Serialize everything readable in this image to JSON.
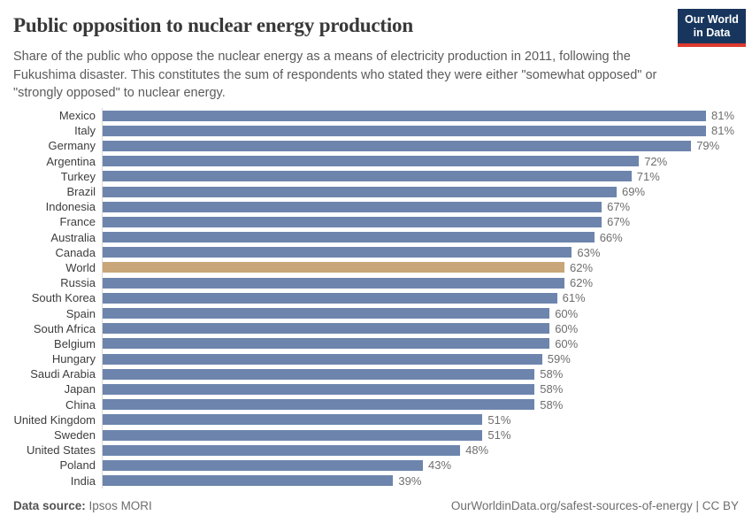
{
  "header": {
    "title": "Public opposition to nuclear energy production",
    "subtitle": "Share of the public who oppose the nuclear energy as a means of electricity production in 2011, following the Fukushima disaster. This constitutes the sum of respondents who stated they were either \"somewhat opposed\" or \"strongly opposed\" to nuclear energy.",
    "logo": {
      "line1": "Our World",
      "line2": "in Data"
    }
  },
  "chart_data": {
    "type": "bar",
    "orientation": "horizontal",
    "title": "Public opposition to nuclear energy production",
    "unit": "%",
    "xlim": [
      0,
      81
    ],
    "grid": false,
    "legend": "none",
    "highlight_category": "World",
    "colors": {
      "bar": "#6d85ad",
      "highlight": "#c8a679",
      "axis_line": "#d9d9d9"
    },
    "categories": [
      "Mexico",
      "Italy",
      "Germany",
      "Argentina",
      "Turkey",
      "Brazil",
      "Indonesia",
      "France",
      "Australia",
      "Canada",
      "World",
      "Russia",
      "South Korea",
      "Spain",
      "South Africa",
      "Belgium",
      "Hungary",
      "Saudi Arabia",
      "Japan",
      "China",
      "United Kingdom",
      "Sweden",
      "United States",
      "Poland",
      "India"
    ],
    "values": [
      81,
      81,
      79,
      72,
      71,
      69,
      67,
      67,
      66,
      63,
      62,
      62,
      61,
      60,
      60,
      60,
      59,
      58,
      58,
      58,
      51,
      51,
      48,
      43,
      39
    ],
    "value_labels": [
      "81%",
      "81%",
      "79%",
      "72%",
      "71%",
      "69%",
      "67%",
      "67%",
      "66%",
      "63%",
      "62%",
      "62%",
      "61%",
      "60%",
      "60%",
      "60%",
      "59%",
      "58%",
      "58%",
      "58%",
      "51%",
      "51%",
      "48%",
      "43%",
      "39%"
    ]
  },
  "footer": {
    "datasource_label": "Data source:",
    "datasource_value": "Ipsos MORI",
    "attribution": "OurWorldinData.org/safest-sources-of-energy | CC BY"
  },
  "brand_colors": {
    "logo_background": "#18365d",
    "logo_stripe": "#dc3a2f",
    "logo_text": "#ffffff"
  }
}
